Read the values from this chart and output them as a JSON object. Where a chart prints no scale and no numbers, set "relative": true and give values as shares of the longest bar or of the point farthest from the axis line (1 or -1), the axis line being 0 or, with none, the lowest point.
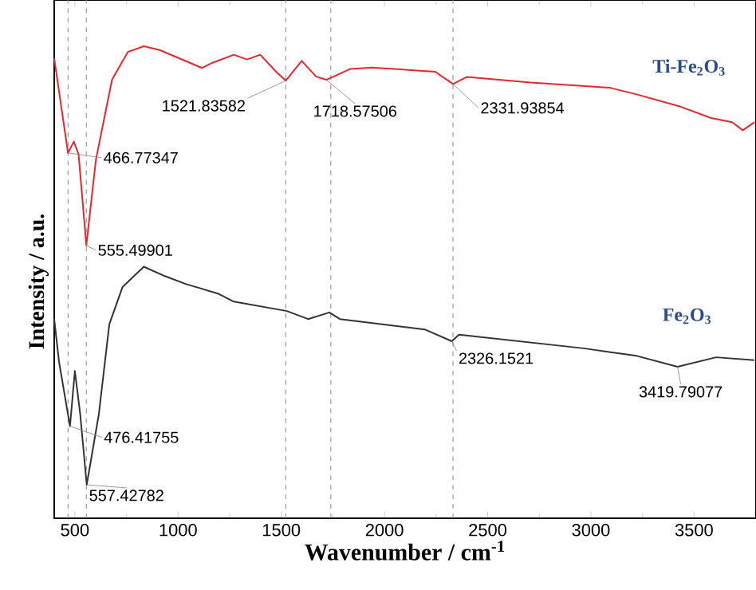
{
  "chart_data": {
    "type": "line",
    "relative": true,
    "xlabel": "Wavenumber / cm$^{-1}$",
    "ylabel": "Intensity / a.u.",
    "xlim": [
      400,
      3800
    ],
    "xticks": [
      500,
      1000,
      1500,
      2000,
      2500,
      3000,
      3500
    ],
    "series": [
      {
        "name": "Ti-Fe$_{2}$O$_{3}$",
        "color": "#e8262d",
        "x": [
          400,
          466.77,
          495,
          518,
          555.5,
          602,
          680,
          757,
          834,
          911,
          1116,
          1167,
          1270,
          1334,
          1398,
          1475,
          1521.84,
          1599,
          1668,
          1718.58,
          1835,
          1938,
          2246,
          2331.94,
          2400,
          2708,
          3093,
          3222,
          3427,
          3582,
          3684,
          3736,
          3792
        ],
        "values": [
          0.974,
          0.774,
          0.798,
          0.771,
          0.578,
          0.76,
          0.929,
          0.988,
          1,
          0.992,
          0.954,
          0.965,
          0.982,
          0.972,
          0.982,
          0.946,
          0.927,
          0.969,
          0.936,
          0.929,
          0.952,
          0.955,
          0.946,
          0.92,
          0.935,
          0.923,
          0.912,
          0.898,
          0.873,
          0.848,
          0.839,
          0.822,
          0.839
        ]
      },
      {
        "name": "Fe$_{2}$O$_{3}$",
        "color": "#333333",
        "x": [
          400,
          423,
          476.42,
          500,
          526,
          557.43,
          616,
          667,
          731,
          834,
          936,
          1039,
          1193,
          1270,
          1527,
          1630,
          1733,
          1784,
          2195,
          2326.15,
          2361,
          2965,
          3222,
          3419.79,
          3607,
          3792
        ],
        "values": [
          0.422,
          0.332,
          0.195,
          0.312,
          0.22,
          0.071,
          0.22,
          0.411,
          0.49,
          0.533,
          0.513,
          0.496,
          0.476,
          0.459,
          0.439,
          0.422,
          0.436,
          0.422,
          0.4,
          0.375,
          0.389,
          0.36,
          0.344,
          0.321,
          0.341,
          0.335
        ]
      }
    ],
    "ref_lines": [
      {
        "axis": "x",
        "value": 466.77,
        "color": "#888888",
        "line_style": "dashed"
      },
      {
        "axis": "x",
        "value": 555.5,
        "color": "#888888",
        "line_style": "dashed"
      },
      {
        "axis": "x",
        "value": 1521.84,
        "color": "#888888",
        "line_style": "dashed"
      },
      {
        "axis": "x",
        "value": 1740,
        "color": "#888888",
        "line_style": "dashed"
      },
      {
        "axis": "x",
        "value": 2331.94,
        "color": "#888888",
        "line_style": "dashed"
      }
    ],
    "annotations": [
      {
        "text": "466.77347",
        "x": 466.77,
        "y": 0.774
      },
      {
        "text": "555.49901",
        "x": 555.5,
        "y": 0.578
      },
      {
        "text": "1521.83582",
        "x": 1521.84,
        "y": 0.927
      },
      {
        "text": "1718.57506",
        "x": 1718.58,
        "y": 0.929
      },
      {
        "text": "2331.93854",
        "x": 2331.94,
        "y": 0.92
      },
      {
        "text": "476.41755",
        "x": 476.42,
        "y": 0.195
      },
      {
        "text": "557.42782",
        "x": 557.43,
        "y": 0.071
      },
      {
        "text": "2326.1521",
        "x": 2326.15,
        "y": 0.375
      },
      {
        "text": "3419.79077",
        "x": 3419.79,
        "y": 0.321
      }
    ]
  }
}
